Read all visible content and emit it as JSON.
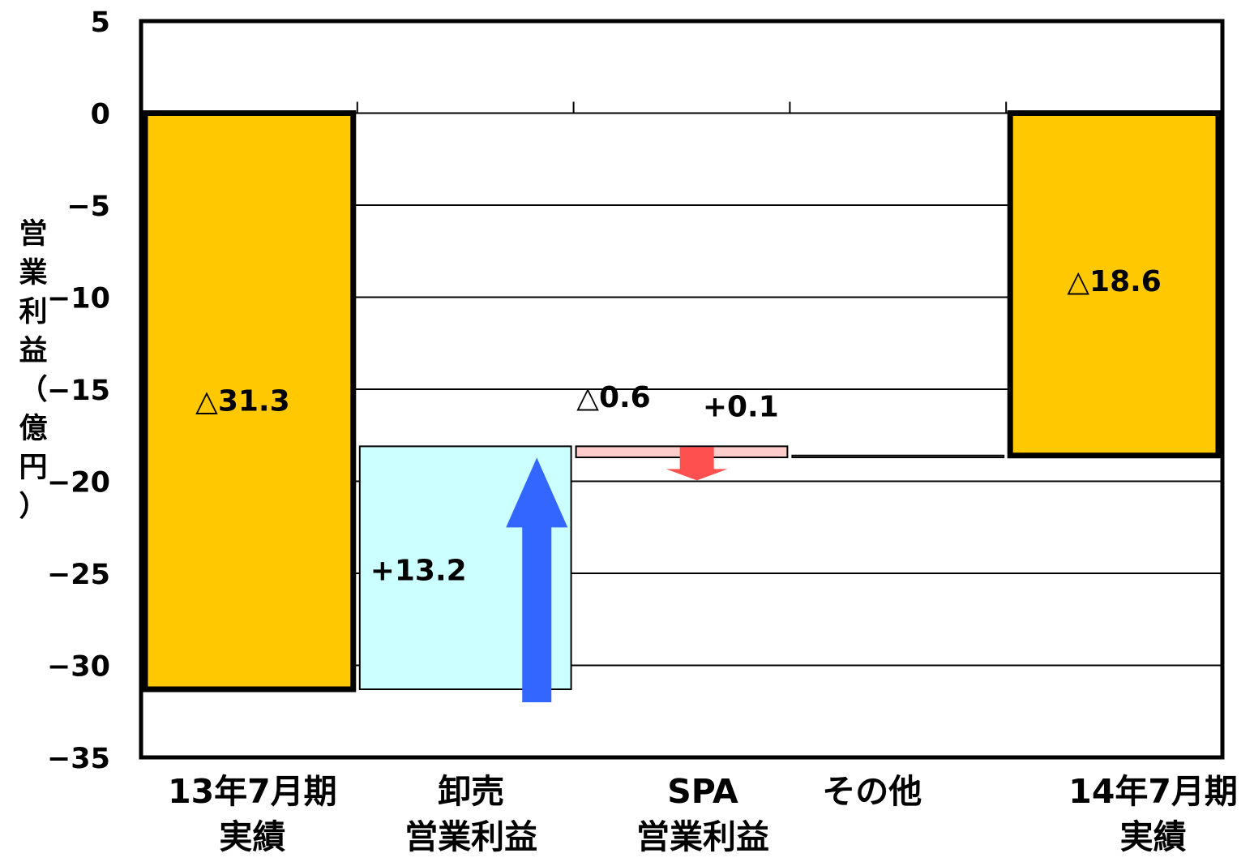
{
  "chart_data": {
    "type": "waterfall",
    "ylabel": "営業利益（億円）",
    "ylim": [
      -35,
      5
    ],
    "yticks": [
      5,
      0,
      -5,
      -10,
      -15,
      -20,
      -25,
      -30,
      -35
    ],
    "ytick_labels": [
      "5",
      "0",
      "−5",
      "−10",
      "−15",
      "−20",
      "−25",
      "−30",
      "−35"
    ],
    "categories": [
      [
        "13年7月期",
        "実績"
      ],
      [
        "卸売",
        "営業利益"
      ],
      [
        "SPA",
        "営業利益"
      ],
      [
        "その他"
      ],
      [
        "14年7月期",
        "実績"
      ]
    ],
    "bars": [
      {
        "kind": "total",
        "from": 0,
        "to": -31.3,
        "label": "△31.3",
        "color": "#FFC800"
      },
      {
        "kind": "increase",
        "from": -31.3,
        "to": -18.1,
        "label": "+13.2",
        "color": "#CCFFFF",
        "arrow_color": "#3366FF"
      },
      {
        "kind": "decrease",
        "from": -18.1,
        "to": -18.7,
        "label": "△0.6",
        "color": "#FFCCCC",
        "arrow_color": "#FF5050"
      },
      {
        "kind": "increase",
        "from": -18.7,
        "to": -18.6,
        "label": "+0.1",
        "color": "#FFFFFF"
      },
      {
        "kind": "total",
        "from": 0,
        "to": -18.6,
        "label": "△18.6",
        "color": "#FFC800"
      }
    ],
    "grid": true,
    "legend": "none"
  }
}
